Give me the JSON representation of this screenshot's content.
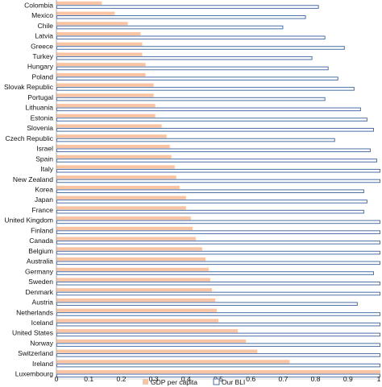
{
  "chart_data": {
    "type": "bar",
    "orientation": "horizontal",
    "categories": [
      "Colombia",
      "Mexico",
      "Chile",
      "Latvia",
      "Greece",
      "Turkey",
      "Hungary",
      "Poland",
      "Slovak Republic",
      "Portugal",
      "Lithuania",
      "Estonia",
      "Slovenia",
      "Czech Republic",
      "Israel",
      "Spain",
      "Italy",
      "New Zealand",
      "Korea",
      "Japan",
      "France",
      "United Kingdom",
      "Finland",
      "Canada",
      "Belgium",
      "Australia",
      "Germany",
      "Sweden",
      "Denmark",
      "Austria",
      "Netherlands",
      "Iceland",
      "United States",
      "Norway",
      "Switzerland",
      "Ireland",
      "Luxembourg"
    ],
    "series": [
      {
        "name": "GDP per capita",
        "color": "#f8c4a4",
        "values": [
          0.14,
          0.18,
          0.22,
          0.26,
          0.265,
          0.265,
          0.275,
          0.275,
          0.3,
          0.3,
          0.305,
          0.305,
          0.325,
          0.34,
          0.35,
          0.355,
          0.365,
          0.37,
          0.38,
          0.4,
          0.4,
          0.415,
          0.42,
          0.43,
          0.45,
          0.46,
          0.47,
          0.475,
          0.48,
          0.49,
          0.495,
          0.5,
          0.56,
          0.585,
          0.62,
          0.72,
          1.0
        ]
      },
      {
        "name": "Our BLI",
        "color": "#4a6fa5",
        "values": [
          0.81,
          0.77,
          0.7,
          0.83,
          0.89,
          0.79,
          0.84,
          0.87,
          0.92,
          0.83,
          0.94,
          0.96,
          0.98,
          0.86,
          0.97,
          0.99,
          1.0,
          1.0,
          0.95,
          0.96,
          0.95,
          1.0,
          1.0,
          1.0,
          1.0,
          1.0,
          0.98,
          1.0,
          1.0,
          0.93,
          1.0,
          1.0,
          1.0,
          1.0,
          1.0,
          1.0,
          1.0
        ]
      }
    ],
    "xlim": [
      0,
      1
    ],
    "xticks": [
      "0",
      "0.1",
      "0.2",
      "0.3",
      "0.4",
      "0.5",
      "0.6",
      "0.7",
      "0.8",
      "0.9",
      "1"
    ],
    "grid": false,
    "legend_position": "bottom-center"
  }
}
